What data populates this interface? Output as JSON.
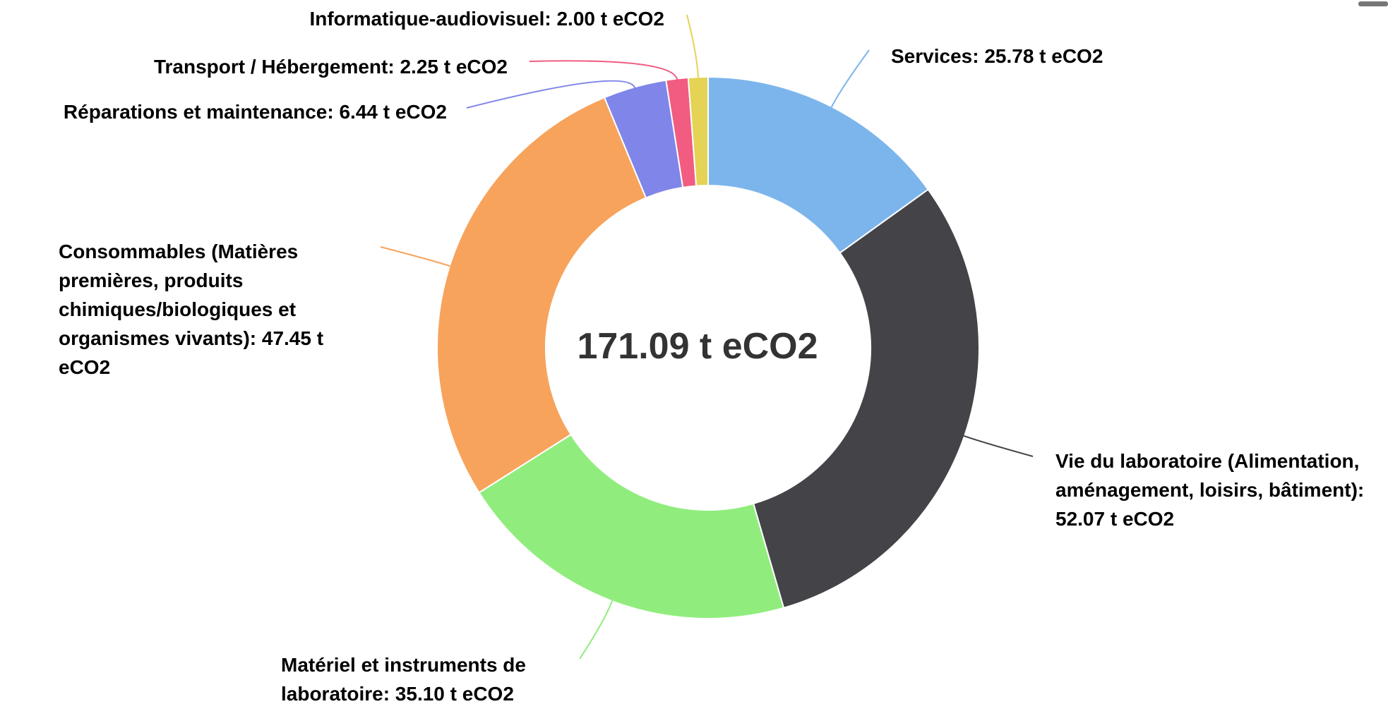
{
  "chart_data": {
    "type": "donut",
    "value_labels": [
      "Services: 25.78 t eCO2",
      "Vie du laboratoire (Alimentation, aménagement, loisirs, bâtiment): 52.07 t eCO2",
      "Matériel et instruments de laboratoire: 35.10 t eCO2",
      "Consommables (Matières premières, produits chimiques/biologiques et organismes vivants): 47.45 t eCO2",
      "Réparations et maintenance: 6.44 t eCO2",
      "Transport / Hébergement: 2.25 t eCO2",
      "Informatique-audiovisuel: 2.00 t eCO2"
    ],
    "values": [
      25.78,
      52.07,
      35.1,
      47.45,
      6.44,
      2.25,
      2.0
    ],
    "colors": [
      "#7cb5ec",
      "#434348",
      "#90ed7d",
      "#f7a35c",
      "#8085e9",
      "#f15c80",
      "#e4d354"
    ],
    "center_label": "171.09 t eCO2"
  }
}
